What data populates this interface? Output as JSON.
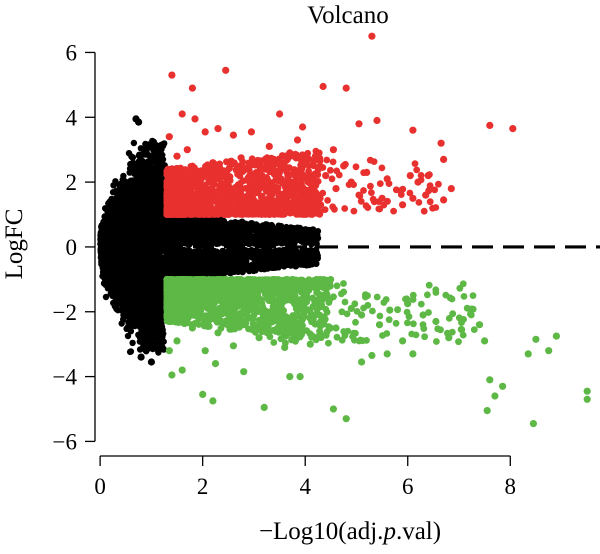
{
  "chart_data": {
    "type": "scatter",
    "title": "Volcano",
    "xlabel": "−Log10(adj.p.val)",
    "xlabel_parts": [
      "−Log10(adj.",
      "p",
      ".val)"
    ],
    "ylabel": "LogFC",
    "xlim": [
      -0.1,
      9.75
    ],
    "ylim": [
      -6.45,
      6.6
    ],
    "x_ticks": [
      0,
      2,
      4,
      6,
      8
    ],
    "x_tick_labels": [
      "0",
      "2",
      "4",
      "6",
      "8"
    ],
    "y_ticks": [
      -6,
      -4,
      -2,
      0,
      2,
      4,
      6
    ],
    "y_tick_labels": [
      "−6",
      "−4",
      "−2",
      "0",
      "2",
      "4",
      "6"
    ],
    "grid": false,
    "legend": "none",
    "reference_line": {
      "y": 0,
      "style": "dashed",
      "color": "#000000"
    },
    "thresholds": {
      "logfc": 1,
      "neg_log10_adj_p": 1.3
    },
    "colors": {
      "up": "#e8312f",
      "down": "#5db845",
      "not_significant": "#000000"
    },
    "series": [
      {
        "color": "#e8312f",
        "points": [
          [
            5.3,
            6.5
          ],
          [
            2.45,
            5.45
          ],
          [
            1.4,
            5.3
          ],
          [
            1.8,
            4.9
          ],
          [
            3.5,
            4.1
          ],
          [
            4.35,
            4.95
          ],
          [
            4.8,
            4.9
          ],
          [
            3.95,
            3.7
          ],
          [
            5.05,
            3.8
          ],
          [
            5.4,
            3.9
          ],
          [
            6.1,
            3.6
          ],
          [
            6.65,
            3.2
          ],
          [
            6.7,
            2.7
          ],
          [
            7.6,
            3.75
          ],
          [
            8.05,
            3.65
          ],
          [
            6.05,
            2.2
          ],
          [
            6.2,
            2.0
          ],
          [
            6.4,
            2.2
          ],
          [
            6.35,
            1.6
          ],
          [
            6.85,
            1.8
          ],
          [
            6.7,
            1.45
          ],
          [
            6.1,
            1.5
          ],
          [
            5.9,
            1.3
          ],
          [
            5.5,
            1.5
          ],
          [
            5.35,
            1.4
          ],
          [
            5.6,
            2.1
          ],
          [
            5.2,
            2.3
          ],
          [
            4.9,
            2.0
          ],
          [
            4.75,
            2.5
          ],
          [
            4.6,
            1.8
          ],
          [
            4.4,
            2.2
          ],
          [
            4.3,
            1.3
          ],
          [
            4.55,
            3.0
          ],
          [
            4.2,
            2.8
          ],
          [
            3.95,
            1.6
          ],
          [
            3.85,
            3.3
          ],
          [
            3.7,
            2.9
          ],
          [
            3.5,
            2.1
          ],
          [
            3.3,
            3.1
          ],
          [
            3.15,
            2.4
          ],
          [
            2.95,
            3.55
          ],
          [
            2.6,
            3.45
          ],
          [
            2.3,
            3.65
          ],
          [
            2.05,
            3.55
          ],
          [
            1.85,
            3.95
          ],
          [
            1.6,
            4.1
          ],
          [
            1.35,
            3.4
          ],
          [
            1.5,
            2.8
          ],
          [
            1.7,
            3.0
          ],
          [
            2.2,
            2.6
          ],
          [
            2.75,
            2.75
          ],
          [
            3.05,
            1.8
          ]
        ]
      },
      {
        "color": "#5db845",
        "points": [
          [
            4.8,
            -5.3
          ],
          [
            4.55,
            -5.0
          ],
          [
            3.2,
            -4.95
          ],
          [
            2.2,
            -4.75
          ],
          [
            2.0,
            -4.55
          ],
          [
            3.7,
            -4.0
          ],
          [
            3.9,
            -4.0
          ],
          [
            2.8,
            -3.85
          ],
          [
            2.25,
            -3.6
          ],
          [
            1.6,
            -3.8
          ],
          [
            1.4,
            -3.95
          ],
          [
            5.1,
            -3.55
          ],
          [
            5.3,
            -3.35
          ],
          [
            5.6,
            -3.3
          ],
          [
            5.9,
            -2.9
          ],
          [
            6.1,
            -3.3
          ],
          [
            6.8,
            -2.8
          ],
          [
            7.05,
            -2.55
          ],
          [
            7.4,
            -2.4
          ],
          [
            7.5,
            -2.9
          ],
          [
            7.6,
            -4.1
          ],
          [
            7.7,
            -4.6
          ],
          [
            7.55,
            -5.05
          ],
          [
            7.85,
            -4.3
          ],
          [
            8.45,
            -5.45
          ],
          [
            8.35,
            -3.3
          ],
          [
            8.5,
            -2.85
          ],
          [
            8.75,
            -3.2
          ],
          [
            8.9,
            -2.75
          ],
          [
            9.5,
            -4.45
          ],
          [
            9.5,
            -4.7
          ],
          [
            6.55,
            -2.3
          ],
          [
            6.3,
            -2.1
          ],
          [
            6.0,
            -1.75
          ],
          [
            5.65,
            -1.95
          ],
          [
            5.45,
            -2.4
          ],
          [
            5.1,
            -2.1
          ],
          [
            4.9,
            -1.9
          ],
          [
            4.6,
            -2.5
          ],
          [
            4.3,
            -2.3
          ],
          [
            4.1,
            -3.0
          ],
          [
            3.85,
            -2.6
          ],
          [
            3.6,
            -3.1
          ],
          [
            3.4,
            -2.2
          ],
          [
            3.1,
            -2.8
          ],
          [
            2.8,
            -2.4
          ],
          [
            2.6,
            -3.05
          ],
          [
            2.3,
            -2.65
          ],
          [
            2.05,
            -3.2
          ],
          [
            1.8,
            -2.5
          ],
          [
            1.5,
            -2.9
          ],
          [
            1.35,
            -3.2
          ]
        ]
      },
      {
        "color": "#000000",
        "points": [
          [
            1.0,
            -3.55
          ],
          [
            0.8,
            -3.4
          ],
          [
            0.95,
            3.15
          ],
          [
            0.75,
            3.85
          ],
          [
            0.7,
            3.95
          ],
          [
            0.9,
            2.9
          ],
          [
            1.0,
            2.7
          ],
          [
            0.6,
            2.4
          ],
          [
            1.05,
            -2.95
          ],
          [
            0.85,
            -3.0
          ]
        ]
      }
    ]
  }
}
